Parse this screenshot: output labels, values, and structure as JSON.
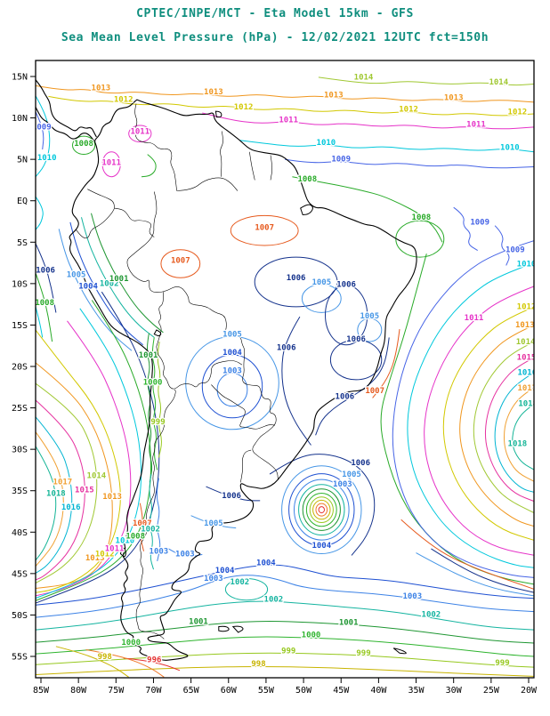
{
  "header": {
    "title_line1": "CPTEC/INPE/MCT -  Eta Model 15km - GFS",
    "title_line2": "Sea Mean Level Pressure (hPa) - 12/02/2021 12UTC fct=150h",
    "title_color": "#0f8e7e"
  },
  "map": {
    "lat_ticks": [
      "15N",
      "10N",
      "5N",
      "EQ",
      "5S",
      "10S",
      "15S",
      "20S",
      "25S",
      "30S",
      "35S",
      "40S",
      "45S",
      "50S",
      "55S"
    ],
    "lon_ticks": [
      "85W",
      "80W",
      "75W",
      "70W",
      "65W",
      "60W",
      "55W",
      "50W",
      "45W",
      "40W",
      "35W",
      "30W",
      "25W",
      "20W"
    ],
    "frame_color": "#000000",
    "coast_color": "#000000"
  },
  "chart_data": {
    "type": "contour",
    "title": "Sea Mean Level Pressure (hPa)",
    "model": "CPTEC/INPE/MCT Eta Model 15km - GFS",
    "run": "12/02/2021 12UTC",
    "forecast": "fct=150h",
    "domain": {
      "lon_west_deg": [
        85,
        20
      ],
      "lat_deg": [
        15,
        -55
      ]
    },
    "contour_interval_hPa": 1,
    "levels": [
      {
        "value": 996,
        "color": "#e63232"
      },
      {
        "value": 997,
        "color": "#f07828"
      },
      {
        "value": 998,
        "color": "#c8b400"
      },
      {
        "value": 999,
        "color": "#96c81e"
      },
      {
        "value": 1000,
        "color": "#2eb42e"
      },
      {
        "value": 1001,
        "color": "#1e9632"
      },
      {
        "value": 1002,
        "color": "#14b4a0"
      },
      {
        "value": 1003,
        "color": "#3c82e6"
      },
      {
        "value": 1004,
        "color": "#1e50d2"
      },
      {
        "value": 1005,
        "color": "#4696e6"
      },
      {
        "value": 1006,
        "color": "#14328c"
      },
      {
        "value": 1007,
        "color": "#e65a1e"
      },
      {
        "value": 1008,
        "color": "#28aa28"
      },
      {
        "value": 1009,
        "color": "#4664e6"
      },
      {
        "value": 1010,
        "color": "#00c8dc"
      },
      {
        "value": 1011,
        "color": "#e632c8"
      },
      {
        "value": 1012,
        "color": "#d2c800"
      },
      {
        "value": 1013,
        "color": "#f0961e"
      },
      {
        "value": 1014,
        "color": "#a0c832"
      },
      {
        "value": 1015,
        "color": "#e632a0"
      },
      {
        "value": 1016,
        "color": "#00b4d2"
      },
      {
        "value": 1017,
        "color": "#f0a032"
      },
      {
        "value": 1018,
        "color": "#14b496"
      }
    ],
    "features": [
      {
        "name": "closed-low",
        "approx_location": "47W 37S",
        "labeled_values_hPa": [
          1003,
          1004
        ],
        "implied_min_hPa": 996
      },
      {
        "name": "south-atlantic-subtropical-high",
        "approx_location": "right edge 20W-25W, 24S-32S",
        "max_labeled_hPa": 1018
      },
      {
        "name": "southeast-pacific-high",
        "approx_location": "left edge 80W-86W, 30S-44S",
        "max_labeled_hPa": 1018
      },
      {
        "name": "chaco-thermal-low",
        "approx_location": "60W 22S",
        "min_labeled_hPa": 1003
      },
      {
        "name": "southern-ocean-gradient",
        "approx_location": "south of 45S",
        "labeled_range_hPa": [
          996,
          1004
        ]
      },
      {
        "name": "andes-packed-contour-band",
        "approx_location": "70W, 15S-50S"
      }
    ]
  }
}
